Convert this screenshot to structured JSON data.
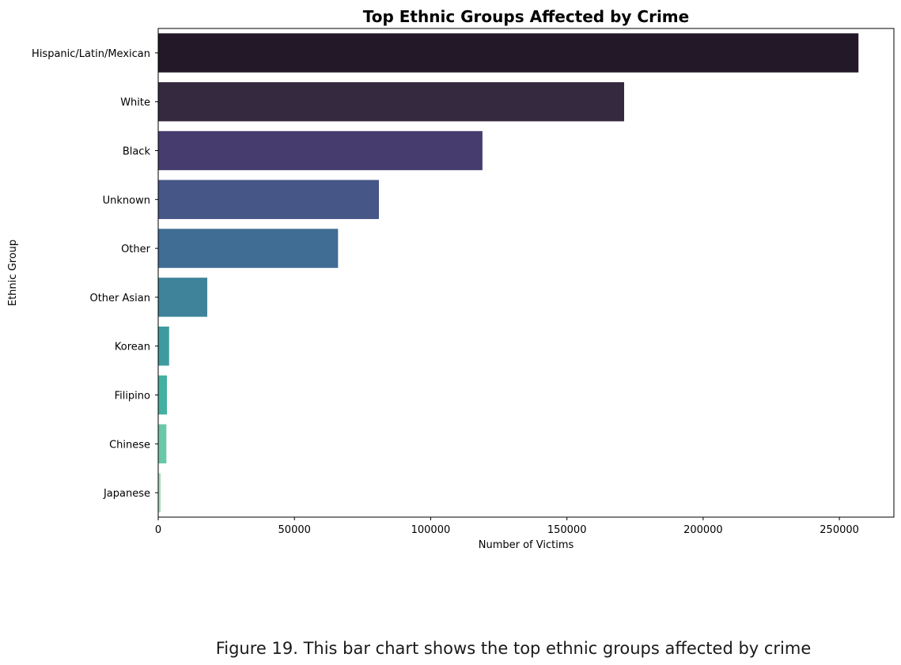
{
  "chart_data": {
    "type": "bar",
    "orientation": "horizontal",
    "title": "Top Ethnic Groups Affected by Crime",
    "xlabel": "Number of Victims",
    "ylabel": "Ethnic Group",
    "categories": [
      "Hispanic/Latin/Mexican",
      "White",
      "Black",
      "Unknown",
      "Other",
      "Other Asian",
      "Korean",
      "Filipino",
      "Chinese",
      "Japanese"
    ],
    "values": [
      257000,
      171000,
      119000,
      81000,
      66000,
      18000,
      4000,
      3200,
      3000,
      900
    ],
    "colors": [
      "#221827",
      "#35293f",
      "#463d6e",
      "#465686",
      "#406d94",
      "#3e8399",
      "#3d9b9f",
      "#43b0a0",
      "#6ac8a6",
      "#a7dcbb"
    ],
    "xlim": [
      0,
      270000
    ],
    "xticks": [
      0,
      50000,
      100000,
      150000,
      200000,
      250000
    ],
    "grid": false,
    "legend": "none"
  },
  "caption": "Figure 19. This bar chart shows the top ethnic groups affected by crime"
}
